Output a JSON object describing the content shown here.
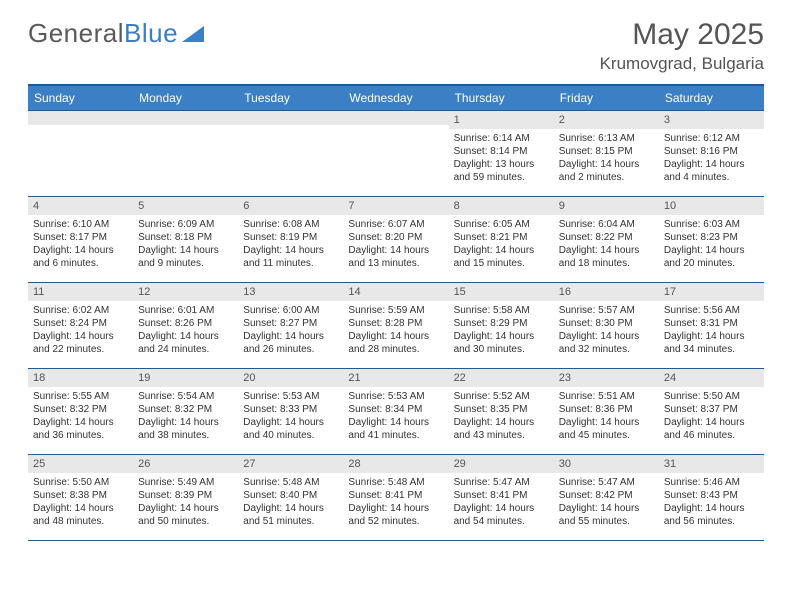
{
  "logo": {
    "text1": "General",
    "text2": "Blue"
  },
  "title": "May 2025",
  "location": "Krumovgrad, Bulgaria",
  "colors": {
    "header_bg": "#3b7fc4",
    "header_border": "#1f5a94",
    "daynum_bg": "#e8e8e8",
    "text_gray": "#555555"
  },
  "weekdays": [
    "Sunday",
    "Monday",
    "Tuesday",
    "Wednesday",
    "Thursday",
    "Friday",
    "Saturday"
  ],
  "weeks": [
    [
      {
        "n": "",
        "sr": "",
        "ss": "",
        "dl": ""
      },
      {
        "n": "",
        "sr": "",
        "ss": "",
        "dl": ""
      },
      {
        "n": "",
        "sr": "",
        "ss": "",
        "dl": ""
      },
      {
        "n": "",
        "sr": "",
        "ss": "",
        "dl": ""
      },
      {
        "n": "1",
        "sr": "Sunrise: 6:14 AM",
        "ss": "Sunset: 8:14 PM",
        "dl": "Daylight: 13 hours and 59 minutes."
      },
      {
        "n": "2",
        "sr": "Sunrise: 6:13 AM",
        "ss": "Sunset: 8:15 PM",
        "dl": "Daylight: 14 hours and 2 minutes."
      },
      {
        "n": "3",
        "sr": "Sunrise: 6:12 AM",
        "ss": "Sunset: 8:16 PM",
        "dl": "Daylight: 14 hours and 4 minutes."
      }
    ],
    [
      {
        "n": "4",
        "sr": "Sunrise: 6:10 AM",
        "ss": "Sunset: 8:17 PM",
        "dl": "Daylight: 14 hours and 6 minutes."
      },
      {
        "n": "5",
        "sr": "Sunrise: 6:09 AM",
        "ss": "Sunset: 8:18 PM",
        "dl": "Daylight: 14 hours and 9 minutes."
      },
      {
        "n": "6",
        "sr": "Sunrise: 6:08 AM",
        "ss": "Sunset: 8:19 PM",
        "dl": "Daylight: 14 hours and 11 minutes."
      },
      {
        "n": "7",
        "sr": "Sunrise: 6:07 AM",
        "ss": "Sunset: 8:20 PM",
        "dl": "Daylight: 14 hours and 13 minutes."
      },
      {
        "n": "8",
        "sr": "Sunrise: 6:05 AM",
        "ss": "Sunset: 8:21 PM",
        "dl": "Daylight: 14 hours and 15 minutes."
      },
      {
        "n": "9",
        "sr": "Sunrise: 6:04 AM",
        "ss": "Sunset: 8:22 PM",
        "dl": "Daylight: 14 hours and 18 minutes."
      },
      {
        "n": "10",
        "sr": "Sunrise: 6:03 AM",
        "ss": "Sunset: 8:23 PM",
        "dl": "Daylight: 14 hours and 20 minutes."
      }
    ],
    [
      {
        "n": "11",
        "sr": "Sunrise: 6:02 AM",
        "ss": "Sunset: 8:24 PM",
        "dl": "Daylight: 14 hours and 22 minutes."
      },
      {
        "n": "12",
        "sr": "Sunrise: 6:01 AM",
        "ss": "Sunset: 8:26 PM",
        "dl": "Daylight: 14 hours and 24 minutes."
      },
      {
        "n": "13",
        "sr": "Sunrise: 6:00 AM",
        "ss": "Sunset: 8:27 PM",
        "dl": "Daylight: 14 hours and 26 minutes."
      },
      {
        "n": "14",
        "sr": "Sunrise: 5:59 AM",
        "ss": "Sunset: 8:28 PM",
        "dl": "Daylight: 14 hours and 28 minutes."
      },
      {
        "n": "15",
        "sr": "Sunrise: 5:58 AM",
        "ss": "Sunset: 8:29 PM",
        "dl": "Daylight: 14 hours and 30 minutes."
      },
      {
        "n": "16",
        "sr": "Sunrise: 5:57 AM",
        "ss": "Sunset: 8:30 PM",
        "dl": "Daylight: 14 hours and 32 minutes."
      },
      {
        "n": "17",
        "sr": "Sunrise: 5:56 AM",
        "ss": "Sunset: 8:31 PM",
        "dl": "Daylight: 14 hours and 34 minutes."
      }
    ],
    [
      {
        "n": "18",
        "sr": "Sunrise: 5:55 AM",
        "ss": "Sunset: 8:32 PM",
        "dl": "Daylight: 14 hours and 36 minutes."
      },
      {
        "n": "19",
        "sr": "Sunrise: 5:54 AM",
        "ss": "Sunset: 8:32 PM",
        "dl": "Daylight: 14 hours and 38 minutes."
      },
      {
        "n": "20",
        "sr": "Sunrise: 5:53 AM",
        "ss": "Sunset: 8:33 PM",
        "dl": "Daylight: 14 hours and 40 minutes."
      },
      {
        "n": "21",
        "sr": "Sunrise: 5:53 AM",
        "ss": "Sunset: 8:34 PM",
        "dl": "Daylight: 14 hours and 41 minutes."
      },
      {
        "n": "22",
        "sr": "Sunrise: 5:52 AM",
        "ss": "Sunset: 8:35 PM",
        "dl": "Daylight: 14 hours and 43 minutes."
      },
      {
        "n": "23",
        "sr": "Sunrise: 5:51 AM",
        "ss": "Sunset: 8:36 PM",
        "dl": "Daylight: 14 hours and 45 minutes."
      },
      {
        "n": "24",
        "sr": "Sunrise: 5:50 AM",
        "ss": "Sunset: 8:37 PM",
        "dl": "Daylight: 14 hours and 46 minutes."
      }
    ],
    [
      {
        "n": "25",
        "sr": "Sunrise: 5:50 AM",
        "ss": "Sunset: 8:38 PM",
        "dl": "Daylight: 14 hours and 48 minutes."
      },
      {
        "n": "26",
        "sr": "Sunrise: 5:49 AM",
        "ss": "Sunset: 8:39 PM",
        "dl": "Daylight: 14 hours and 50 minutes."
      },
      {
        "n": "27",
        "sr": "Sunrise: 5:48 AM",
        "ss": "Sunset: 8:40 PM",
        "dl": "Daylight: 14 hours and 51 minutes."
      },
      {
        "n": "28",
        "sr": "Sunrise: 5:48 AM",
        "ss": "Sunset: 8:41 PM",
        "dl": "Daylight: 14 hours and 52 minutes."
      },
      {
        "n": "29",
        "sr": "Sunrise: 5:47 AM",
        "ss": "Sunset: 8:41 PM",
        "dl": "Daylight: 14 hours and 54 minutes."
      },
      {
        "n": "30",
        "sr": "Sunrise: 5:47 AM",
        "ss": "Sunset: 8:42 PM",
        "dl": "Daylight: 14 hours and 55 minutes."
      },
      {
        "n": "31",
        "sr": "Sunrise: 5:46 AM",
        "ss": "Sunset: 8:43 PM",
        "dl": "Daylight: 14 hours and 56 minutes."
      }
    ]
  ]
}
